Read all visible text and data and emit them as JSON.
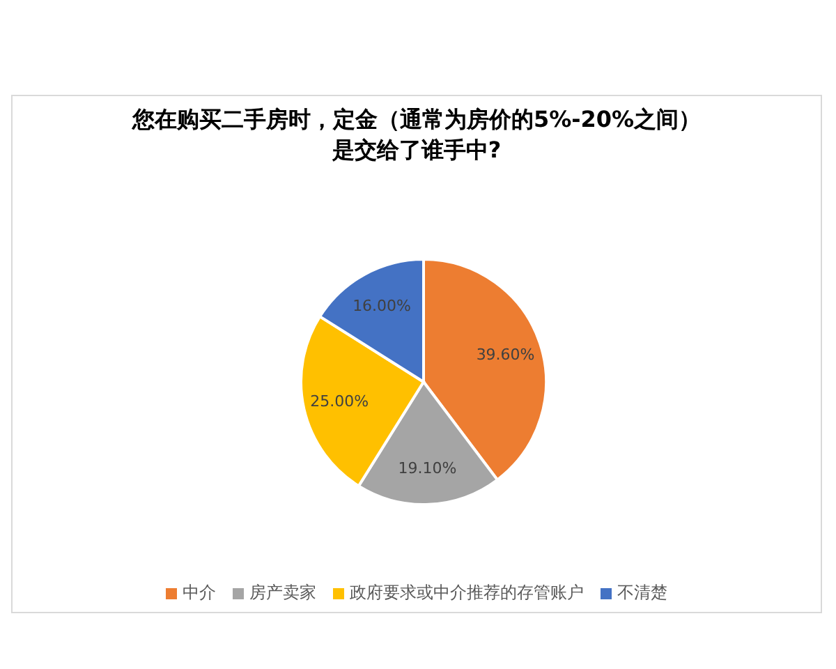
{
  "chart_data": {
    "type": "pie",
    "title": "您在购买二手房时，定金（通常为房价的5%-20%之间）是交给了谁手中?",
    "categories": [
      "中介",
      "房产卖家",
      "政府要求或中介推荐的存管账户",
      "不清楚"
    ],
    "values": [
      39.6,
      19.1,
      25.0,
      16.0
    ],
    "colors": [
      "#ed7d31",
      "#a5a5a5",
      "#ffc000",
      "#4472c4"
    ],
    "value_labels": [
      "39.60%",
      "19.10%",
      "25.00%",
      "16.00%"
    ],
    "legend": "bottom"
  }
}
